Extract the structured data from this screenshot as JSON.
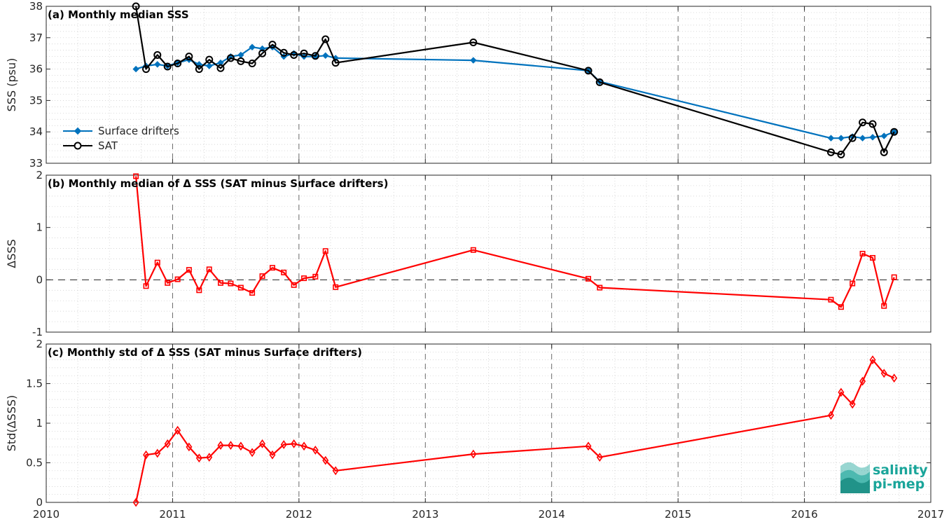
{
  "chart_data": [
    {
      "type": "line",
      "title": "(a) Monthly median SSS",
      "ylabel": "SSS (psu)",
      "xlim": [
        2010,
        2017
      ],
      "ylim": [
        33,
        38
      ],
      "xticks": [
        "2010",
        "2011",
        "2012",
        "2013",
        "2014",
        "2015",
        "2016",
        "2017"
      ],
      "yticks": [
        "33",
        "34",
        "35",
        "36",
        "37",
        "38"
      ],
      "grid": true,
      "legend": "left",
      "series": [
        {
          "name": "Surface drifters",
          "color": "#0072bd",
          "marker": "diamond",
          "x": [
            2010.71,
            2010.79,
            2010.88,
            2010.96,
            2011.04,
            2011.13,
            2011.21,
            2011.29,
            2011.38,
            2011.46,
            2011.54,
            2011.63,
            2011.71,
            2011.79,
            2011.88,
            2011.96,
            2012.04,
            2012.13,
            2012.21,
            2012.29,
            2013.38,
            2014.29,
            2014.38,
            2016.21,
            2016.29,
            2016.38,
            2016.46,
            2016.54,
            2016.63,
            2016.71
          ],
          "y": [
            36.0,
            36.1,
            36.15,
            36.1,
            36.2,
            36.3,
            36.15,
            36.1,
            36.2,
            36.4,
            36.45,
            36.7,
            36.65,
            36.7,
            36.4,
            36.5,
            36.4,
            36.4,
            36.43,
            36.35,
            36.28,
            35.95,
            35.6,
            33.8,
            33.8,
            33.85,
            33.8,
            33.83,
            33.87,
            34.0
          ]
        },
        {
          "name": "SAT",
          "color": "#000000",
          "marker": "circle",
          "x": [
            2010.71,
            2010.79,
            2010.88,
            2010.96,
            2011.04,
            2011.13,
            2011.21,
            2011.29,
            2011.38,
            2011.46,
            2011.54,
            2011.63,
            2011.71,
            2011.79,
            2011.88,
            2011.96,
            2012.04,
            2012.13,
            2012.21,
            2012.29,
            2013.38,
            2014.29,
            2014.38,
            2016.21,
            2016.29,
            2016.38,
            2016.46,
            2016.54,
            2016.63,
            2016.71
          ],
          "y": [
            38.0,
            36.0,
            36.45,
            36.08,
            36.18,
            36.4,
            36.0,
            36.3,
            36.03,
            36.35,
            36.25,
            36.18,
            36.5,
            36.78,
            36.52,
            36.45,
            36.5,
            36.42,
            36.95,
            36.2,
            36.85,
            35.95,
            35.58,
            33.35,
            33.28,
            33.8,
            34.3,
            34.25,
            33.35,
            34.0
          ]
        }
      ]
    },
    {
      "type": "line",
      "title": "(b) Monthly median of Δ SSS (SAT minus Surface drifters)",
      "ylabel": "ΔSSS",
      "xlim": [
        2010,
        2017
      ],
      "ylim": [
        -1,
        2
      ],
      "xticks": [
        "2010",
        "2011",
        "2012",
        "2013",
        "2014",
        "2015",
        "2016",
        "2017"
      ],
      "yticks": [
        "-1",
        "0",
        "1",
        "2"
      ],
      "grid": true,
      "reference_line": 0,
      "series": [
        {
          "color": "#ff0000",
          "marker": "square",
          "x": [
            2010.71,
            2010.79,
            2010.88,
            2010.96,
            2011.04,
            2011.13,
            2011.21,
            2011.29,
            2011.38,
            2011.46,
            2011.54,
            2011.63,
            2011.71,
            2011.79,
            2011.88,
            2011.96,
            2012.04,
            2012.13,
            2012.21,
            2012.29,
            2013.38,
            2014.29,
            2014.38,
            2016.21,
            2016.29,
            2016.38,
            2016.46,
            2016.54,
            2016.63,
            2016.71
          ],
          "y": [
            1.98,
            -0.12,
            0.33,
            -0.06,
            0.01,
            0.19,
            -0.2,
            0.2,
            -0.06,
            -0.07,
            -0.15,
            -0.25,
            0.07,
            0.23,
            0.14,
            -0.1,
            0.03,
            0.06,
            0.55,
            -0.14,
            0.57,
            0.02,
            -0.15,
            -0.38,
            -0.52,
            -0.07,
            0.5,
            0.42,
            -0.5,
            0.05
          ]
        }
      ]
    },
    {
      "type": "line",
      "title": "(c) Monthly std of Δ SSS (SAT minus Surface drifters)",
      "ylabel": "Std(ΔSSS)",
      "xlim": [
        2010,
        2017
      ],
      "ylim": [
        0,
        2
      ],
      "xticks": [
        "2010",
        "2011",
        "2012",
        "2013",
        "2014",
        "2015",
        "2016",
        "2017"
      ],
      "yticks": [
        "0",
        "0.5",
        "1",
        "1.5",
        "2"
      ],
      "grid": true,
      "series": [
        {
          "color": "#ff0000",
          "marker": "diamond",
          "x": [
            2010.71,
            2010.79,
            2010.88,
            2010.96,
            2011.04,
            2011.13,
            2011.21,
            2011.29,
            2011.38,
            2011.46,
            2011.54,
            2011.63,
            2011.71,
            2011.79,
            2011.88,
            2011.96,
            2012.04,
            2012.13,
            2012.21,
            2012.29,
            2013.38,
            2014.29,
            2014.38,
            2016.21,
            2016.29,
            2016.38,
            2016.46,
            2016.54,
            2016.63,
            2016.71
          ],
          "y": [
            0.0,
            0.6,
            0.62,
            0.74,
            0.91,
            0.7,
            0.56,
            0.57,
            0.72,
            0.72,
            0.71,
            0.63,
            0.74,
            0.6,
            0.73,
            0.74,
            0.71,
            0.66,
            0.53,
            0.4,
            0.61,
            0.71,
            0.57,
            1.1,
            1.39,
            1.24,
            1.53,
            1.8,
            1.63,
            1.57
          ]
        }
      ]
    }
  ],
  "logo": {
    "line1": "salinity",
    "line2": "pi-mep",
    "color": "#1aa59a"
  }
}
